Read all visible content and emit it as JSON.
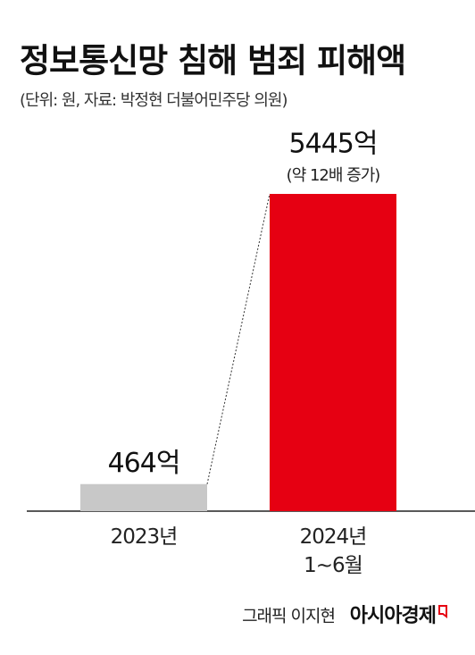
{
  "chart_data": {
    "type": "bar",
    "title": "정보통신망 침해 범죄 피해액",
    "subtitle": "(단위: 원, 자료: 박정현 더불어민주당 의원)",
    "categories": [
      "2023년",
      "2024년\n1~6월"
    ],
    "values": [
      464,
      5445
    ],
    "value_labels": [
      "464억",
      "5445억"
    ],
    "colors": [
      "#c8c8c8",
      "#e60012"
    ],
    "annotation": "(약 12배 증가)"
  },
  "credit": "그래픽 이지현",
  "publisher": "아시아경제"
}
